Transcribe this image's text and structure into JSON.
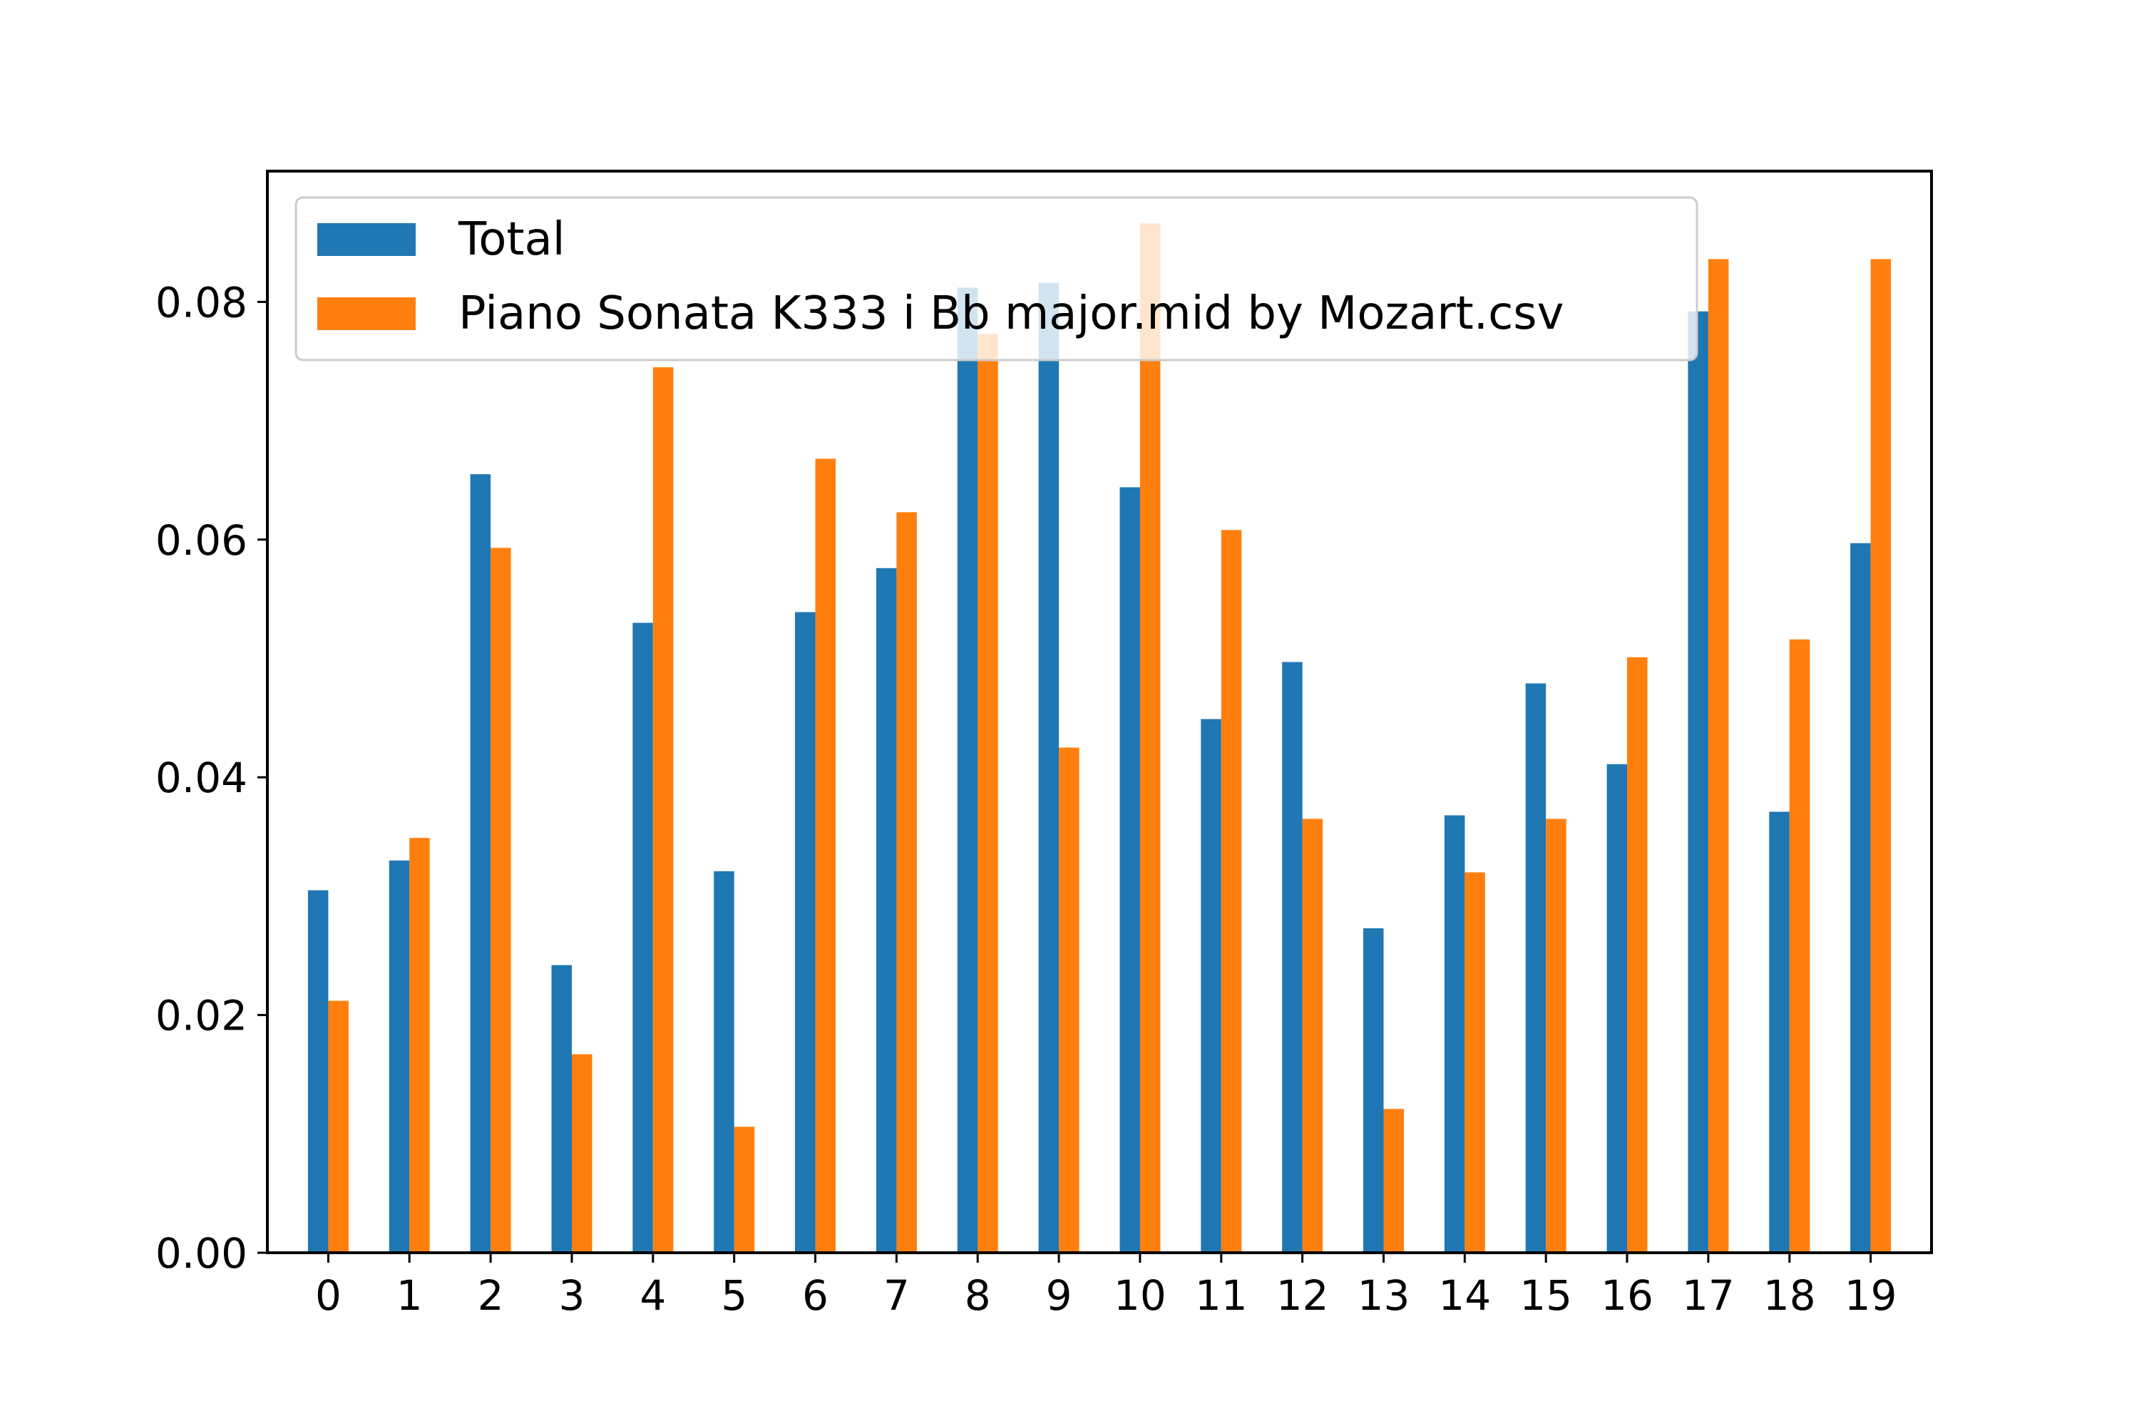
{
  "chart_data": {
    "type": "bar",
    "categories": [
      "0",
      "1",
      "2",
      "3",
      "4",
      "5",
      "6",
      "7",
      "8",
      "9",
      "10",
      "11",
      "12",
      "13",
      "14",
      "15",
      "16",
      "17",
      "18",
      "19"
    ],
    "series": [
      {
        "name": "Total",
        "color": "#1f77b4",
        "values": [
          0.0305,
          0.033,
          0.0655,
          0.0242,
          0.053,
          0.0321,
          0.0539,
          0.0576,
          0.0812,
          0.0816,
          0.0644,
          0.0449,
          0.0497,
          0.0273,
          0.0368,
          0.0479,
          0.0411,
          0.0792,
          0.0371,
          0.0597
        ]
      },
      {
        "name": "Piano Sonata K333 i Bb major.mid by Mozart.csv",
        "color": "#ff7f0e",
        "values": [
          0.0212,
          0.0349,
          0.0593,
          0.0167,
          0.0745,
          0.0106,
          0.0668,
          0.0623,
          0.0773,
          0.0425,
          0.0866,
          0.0608,
          0.0365,
          0.0121,
          0.032,
          0.0365,
          0.0501,
          0.0836,
          0.0516,
          0.0836
        ]
      }
    ],
    "ylim": [
      0,
      0.091
    ],
    "yticks": [
      "0.00",
      "0.02",
      "0.04",
      "0.06",
      "0.08"
    ],
    "title": "",
    "xlabel": "",
    "ylabel": "",
    "legend_position": "upper-left",
    "grid": false
  }
}
